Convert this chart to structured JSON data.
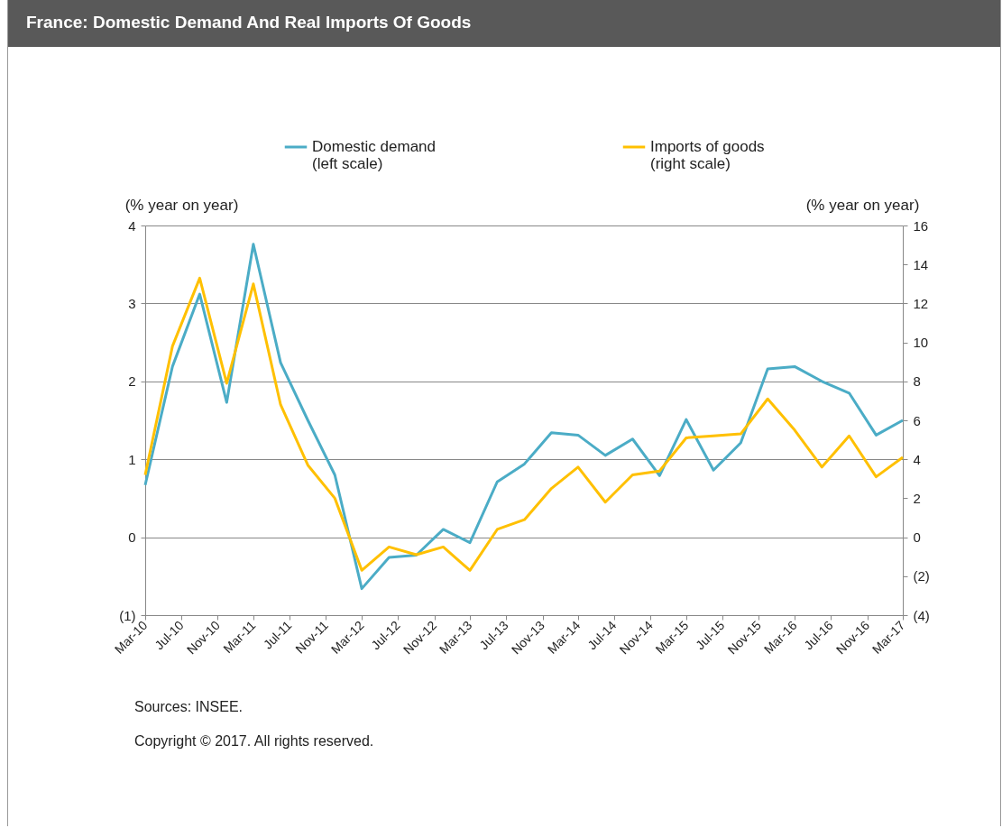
{
  "chart_data": {
    "type": "line",
    "title": "France: Domestic Demand And Real Imports Of Goods",
    "ylabel": "(% year on year)",
    "y2label": "(% year on year)",
    "x": [
      "2010-03",
      "2010-06",
      "2010-09",
      "2010-12",
      "2011-03",
      "2011-06",
      "2011-09",
      "2011-12",
      "2012-03",
      "2012-06",
      "2012-09",
      "2012-12",
      "2013-03",
      "2013-06",
      "2013-09",
      "2013-12",
      "2014-03",
      "2014-06",
      "2014-09",
      "2014-12",
      "2015-03",
      "2015-06",
      "2015-09",
      "2015-12",
      "2016-03",
      "2016-06",
      "2016-09",
      "2016-12",
      "2017-03"
    ],
    "series": [
      {
        "name": "Domestic demand (left scale)",
        "color": "#4bacc6",
        "values": [
          0.67,
          2.19,
          3.12,
          1.73,
          3.76,
          2.24,
          1.5,
          0.8,
          -0.66,
          -0.26,
          -0.23,
          0.1,
          -0.07,
          0.71,
          0.94,
          1.34,
          1.31,
          1.05,
          1.26,
          0.79,
          1.51,
          0.86,
          1.21,
          2.16,
          2.19,
          2.0,
          1.85,
          1.31,
          1.5
        ]
      },
      {
        "name": "Imports of goods (right scale)",
        "color": "#ffc000",
        "axis": "y2",
        "values": [
          3.2,
          9.8,
          13.3,
          7.9,
          13.0,
          6.8,
          3.7,
          2.0,
          -1.7,
          -0.5,
          -0.9,
          -0.5,
          -1.7,
          0.4,
          0.9,
          2.5,
          3.6,
          1.8,
          3.2,
          3.4,
          5.1,
          5.2,
          5.3,
          7.1,
          5.5,
          3.6,
          5.2,
          3.1,
          4.1
        ]
      }
    ],
    "xlim": [
      "2010-03",
      "2017-03"
    ],
    "xticks": [
      {
        "value": "2010-03",
        "label": "Mar-10"
      },
      {
        "value": "2010-07",
        "label": "Jul-10"
      },
      {
        "value": "2010-11",
        "label": "Nov-10"
      },
      {
        "value": "2011-03",
        "label": "Mar-11"
      },
      {
        "value": "2011-07",
        "label": "Jul-11"
      },
      {
        "value": "2011-11",
        "label": "Nov-11"
      },
      {
        "value": "2012-03",
        "label": "Mar-12"
      },
      {
        "value": "2012-07",
        "label": "Jul-12"
      },
      {
        "value": "2012-11",
        "label": "Nov-12"
      },
      {
        "value": "2013-03",
        "label": "Mar-13"
      },
      {
        "value": "2013-07",
        "label": "Jul-13"
      },
      {
        "value": "2013-11",
        "label": "Nov-13"
      },
      {
        "value": "2014-03",
        "label": "Mar-14"
      },
      {
        "value": "2014-07",
        "label": "Jul-14"
      },
      {
        "value": "2014-11",
        "label": "Nov-14"
      },
      {
        "value": "2015-03",
        "label": "Mar-15"
      },
      {
        "value": "2015-07",
        "label": "Jul-15"
      },
      {
        "value": "2015-11",
        "label": "Nov-15"
      },
      {
        "value": "2016-03",
        "label": "Mar-16"
      },
      {
        "value": "2016-07",
        "label": "Jul-16"
      },
      {
        "value": "2016-11",
        "label": "Nov-16"
      },
      {
        "value": "2017-03",
        "label": "Mar-17"
      }
    ],
    "ylim": [
      -1,
      4
    ],
    "yticks": [
      {
        "value": -1,
        "label": "(1)"
      },
      0,
      1,
      2,
      3,
      4
    ],
    "y2lim": [
      -4,
      16
    ],
    "y2ticks": [
      {
        "value": -4,
        "label": "(4)"
      },
      {
        "value": -2,
        "label": "(2)"
      },
      0,
      2,
      4,
      6,
      8,
      10,
      12,
      14,
      16
    ],
    "grid": "y",
    "legend": "top",
    "line_style": "solid",
    "annotations": [
      "Sources: INSEE.",
      "Copyright © 2017. All rights reserved."
    ]
  }
}
